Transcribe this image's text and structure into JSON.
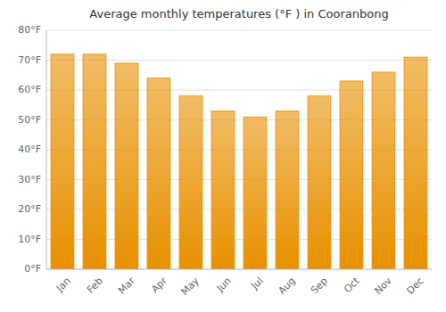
{
  "chart_data": {
    "type": "bar",
    "title": "Average monthly temperatures (°F ) in Cooranbong",
    "categories": [
      "Jan",
      "Feb",
      "Mar",
      "Apr",
      "May",
      "Jun",
      "Jul",
      "Aug",
      "Sep",
      "Oct",
      "Nov",
      "Dec"
    ],
    "values": [
      72,
      72,
      69,
      64,
      58,
      53,
      51,
      53,
      58,
      63,
      66,
      71
    ],
    "color": "#E89000",
    "ylim": [
      0,
      80
    ],
    "yticks": [
      {
        "value": 0,
        "label": "0°F"
      },
      {
        "value": 10,
        "label": "10°F"
      },
      {
        "value": 20,
        "label": "20°F"
      },
      {
        "value": 30,
        "label": "30°F"
      },
      {
        "value": 40,
        "label": "40°F"
      },
      {
        "value": 50,
        "label": "50°F"
      },
      {
        "value": 60,
        "label": "60°F"
      },
      {
        "value": 70,
        "label": "70°F"
      },
      {
        "value": 80,
        "label": "80°F"
      }
    ],
    "grid": true
  }
}
